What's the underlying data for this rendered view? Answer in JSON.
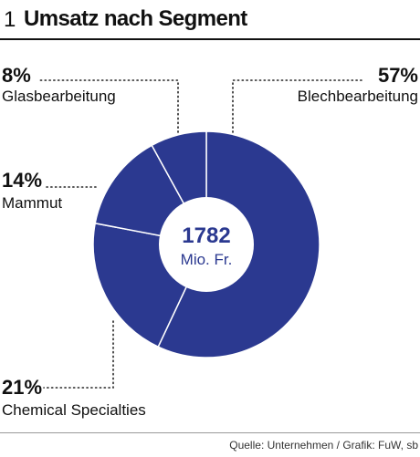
{
  "header": {
    "number": "1",
    "title": "Umsatz nach Segment"
  },
  "chart_data": {
    "type": "pie",
    "title": "Umsatz nach Segment",
    "total": "1782",
    "total_unit": "Mio. Fr.",
    "slice_color": "#2b3990",
    "separator_color": "#ffffff",
    "segments": [
      {
        "name": "Blechbearbeitung",
        "percent_label": "57%",
        "value": 57
      },
      {
        "name": "Chemical Specialties",
        "percent_label": "21%",
        "value": 21
      },
      {
        "name": "Mammut",
        "percent_label": "14%",
        "value": 14
      },
      {
        "name": "Glasbearbeitung",
        "percent_label": "8%",
        "value": 8
      }
    ]
  },
  "footer": {
    "source": "Quelle: Unternehmen / Grafik: FuW, sb"
  }
}
